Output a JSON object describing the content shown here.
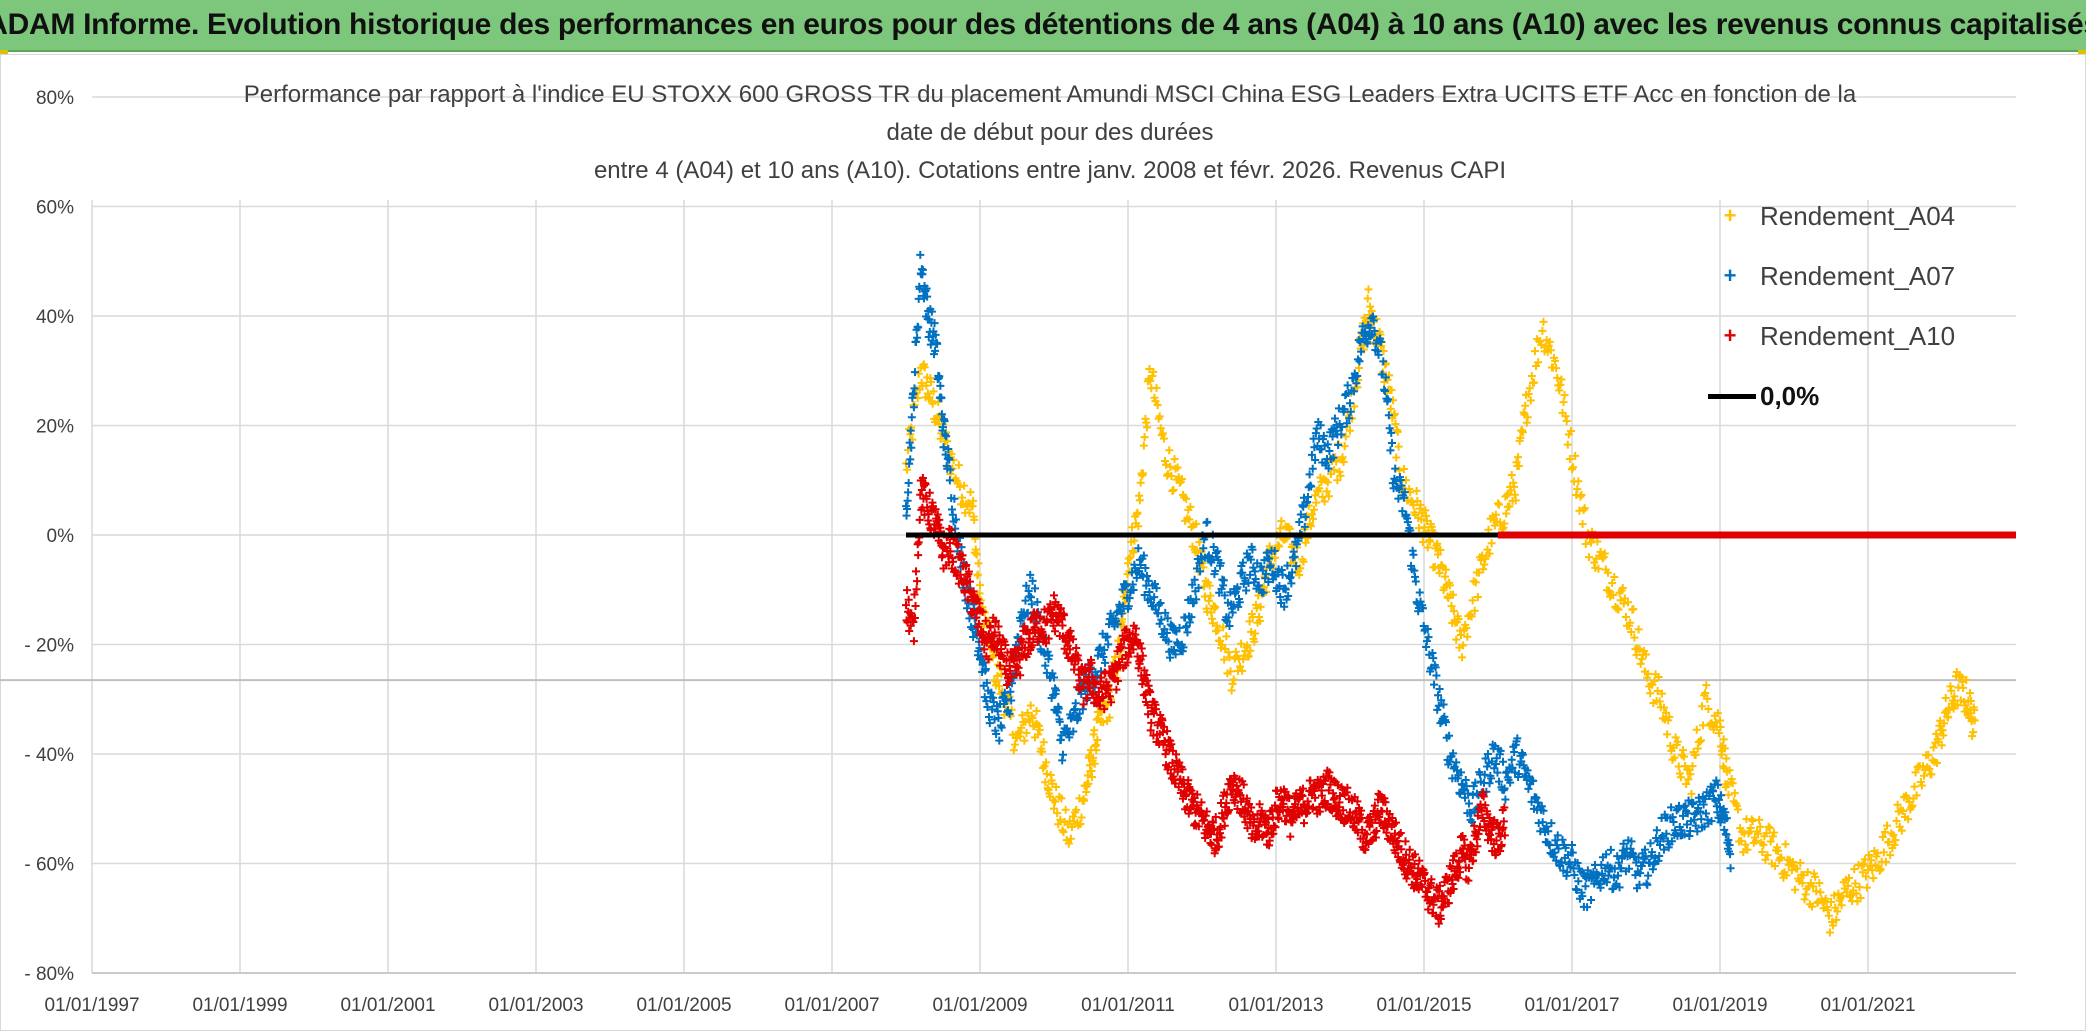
{
  "banner": {
    "title": "ADAM Informe. Evolution historique des performances en euros pour des détentions de 4 ans (A04) à 10 ans (A10) avec les revenus connus capitalisés"
  },
  "chart_data": {
    "type": "scatter",
    "title_lines": [
      "Performance par rapport à l'indice EU STOXX 600 GROSS TR  du placement Amundi MSCI China ESG Leaders Extra UCITS ETF Acc en fonction de la",
      "date de début pour des durées",
      "entre 4 (A04) et 10 ans (A10). Cotations entre janv. 2008 et févr. 2026. Revenus CAPI"
    ],
    "xlabel": "",
    "ylabel": "",
    "xlim": [
      1997.0,
      2023.0
    ],
    "ylim": [
      -80,
      80
    ],
    "x_ticks": [
      {
        "value": 1997,
        "label": "01/01/1997"
      },
      {
        "value": 1999,
        "label": "01/01/1999"
      },
      {
        "value": 2001,
        "label": "01/01/2001"
      },
      {
        "value": 2003,
        "label": "01/01/2003"
      },
      {
        "value": 2005,
        "label": "01/01/2005"
      },
      {
        "value": 2007,
        "label": "01/01/2007"
      },
      {
        "value": 2009,
        "label": "01/01/2009"
      },
      {
        "value": 2011,
        "label": "01/01/2011"
      },
      {
        "value": 2013,
        "label": "01/01/2013"
      },
      {
        "value": 2015,
        "label": "01/01/2015"
      },
      {
        "value": 2017,
        "label": "01/01/2017"
      },
      {
        "value": 2019,
        "label": "01/01/2019"
      },
      {
        "value": 2021,
        "label": "01/01/2021"
      }
    ],
    "y_ticks": [
      {
        "value": 80,
        "label": "80%"
      },
      {
        "value": 60,
        "label": "60%"
      },
      {
        "value": 40,
        "label": "40%"
      },
      {
        "value": 20,
        "label": "20%"
      },
      {
        "value": 0,
        "label": "0%"
      },
      {
        "value": -20,
        "label": "- 20%"
      },
      {
        "value": -40,
        "label": "- 40%"
      },
      {
        "value": -60,
        "label": "- 60%"
      },
      {
        "value": -80,
        "label": "- 80%"
      }
    ],
    "grid": true,
    "legend_position": "top-right",
    "series": [
      {
        "name": "Rendement_A04",
        "color": "#ffc000",
        "marker": "+",
        "x": [
          2008.0,
          2008.2,
          2008.35,
          2008.5,
          2008.7,
          2008.9,
          2009.0,
          2009.15,
          2009.3,
          2009.5,
          2009.7,
          2009.85,
          2010.0,
          2010.2,
          2010.4,
          2010.5,
          2010.6,
          2010.75,
          2010.9,
          2011.0,
          2011.15,
          2011.3,
          2011.5,
          2011.7,
          2011.9,
          2012.05,
          2012.2,
          2012.4,
          2012.6,
          2012.75,
          2012.9,
          2013.1,
          2013.3,
          2013.5,
          2013.7,
          2013.9,
          2014.1,
          2014.25,
          2014.4,
          2014.55,
          2014.7,
          2014.9,
          2015.05,
          2015.2,
          2015.35,
          2015.5,
          2015.7,
          2015.9,
          2016.1,
          2016.25,
          2016.4,
          2016.6,
          2016.8,
          2017.0,
          2017.2,
          2017.4,
          2017.6,
          2017.8,
          2018.0,
          2018.2,
          2018.4,
          2018.6,
          2018.8,
          2019.0,
          2019.1,
          2019.3,
          2019.5,
          2019.7,
          2019.9,
          2020.1,
          2020.3,
          2020.5,
          2020.7,
          2020.9,
          2021.1,
          2021.3,
          2021.5,
          2021.7,
          2021.9,
          2022.05,
          2022.2,
          2022.35,
          2022.45
        ],
        "y": [
          12,
          30,
          25,
          18,
          10,
          5,
          -12,
          -22,
          -28,
          -38,
          -32,
          -40,
          -48,
          -55,
          -48,
          -42,
          -35,
          -30,
          -20,
          -5,
          5,
          30,
          15,
          8,
          0,
          -10,
          -15,
          -25,
          -20,
          -15,
          -5,
          0,
          -5,
          5,
          10,
          15,
          30,
          42,
          35,
          25,
          10,
          5,
          0,
          -5,
          -12,
          -20,
          -10,
          0,
          5,
          10,
          25,
          38,
          30,
          15,
          0,
          -5,
          -10,
          -15,
          -25,
          -30,
          -40,
          -45,
          -30,
          -35,
          -45,
          -55,
          -55,
          -57,
          -60,
          -63,
          -65,
          -70,
          -65,
          -63,
          -60,
          -55,
          -50,
          -45,
          -40,
          -33,
          -28,
          -30,
          -36
        ]
      },
      {
        "name": "Rendement_A07",
        "color": "#0070c0",
        "marker": "+",
        "x": [
          2008.0,
          2008.1,
          2008.2,
          2008.3,
          2008.4,
          2008.5,
          2008.6,
          2008.75,
          2008.9,
          2009.0,
          2009.1,
          2009.25,
          2009.4,
          2009.55,
          2009.7,
          2009.85,
          2010.0,
          2010.1,
          2010.25,
          2010.4,
          2010.55,
          2010.7,
          2010.85,
          2011.0,
          2011.15,
          2011.3,
          2011.45,
          2011.6,
          2011.75,
          2011.9,
          2012.05,
          2012.2,
          2012.35,
          2012.5,
          2012.65,
          2012.8,
          2012.95,
          2013.1,
          2013.25,
          2013.4,
          2013.55,
          2013.7,
          2013.85,
          2014.0,
          2014.15,
          2014.3,
          2014.45,
          2014.6,
          2014.75,
          2014.9,
          2015.05,
          2015.2,
          2015.35,
          2015.5,
          2015.65,
          2015.8,
          2015.95,
          2016.1,
          2016.25,
          2016.4,
          2016.55,
          2016.7,
          2016.85,
          2017.0,
          2017.15,
          2017.3,
          2017.45,
          2017.6,
          2017.75,
          2017.9,
          2018.05,
          2018.2,
          2018.35,
          2018.5,
          2018.65,
          2018.8,
          2018.95,
          2019.05,
          2019.15
        ],
        "y": [
          5,
          25,
          50,
          40,
          35,
          20,
          10,
          -5,
          -15,
          -20,
          -30,
          -35,
          -30,
          -15,
          -10,
          -20,
          -28,
          -38,
          -35,
          -28,
          -25,
          -20,
          -15,
          -10,
          -5,
          -10,
          -15,
          -20,
          -18,
          -10,
          0,
          -5,
          -15,
          -10,
          -5,
          -8,
          -5,
          -10,
          -5,
          5,
          18,
          15,
          20,
          25,
          35,
          40,
          30,
          10,
          5,
          -10,
          -20,
          -30,
          -40,
          -45,
          -50,
          -45,
          -40,
          -45,
          -40,
          -45,
          -50,
          -55,
          -58,
          -60,
          -65,
          -64,
          -60,
          -62,
          -58,
          -62,
          -60,
          -55,
          -53,
          -52,
          -52,
          -50,
          -48,
          -52,
          -58
        ]
      },
      {
        "name": "Rendement_A10",
        "color": "#e00000",
        "marker": "+",
        "x": [
          2008.0,
          2008.1,
          2008.2,
          2008.3,
          2008.4,
          2008.5,
          2008.6,
          2008.7,
          2008.8,
          2008.9,
          2009.0,
          2009.1,
          2009.2,
          2009.3,
          2009.4,
          2009.5,
          2009.6,
          2009.7,
          2009.8,
          2009.9,
          2010.0,
          2010.1,
          2010.2,
          2010.3,
          2010.4,
          2010.5,
          2010.6,
          2010.7,
          2010.8,
          2010.9,
          2011.0,
          2011.1,
          2011.2,
          2011.3,
          2011.4,
          2011.5,
          2011.6,
          2011.7,
          2011.8,
          2011.9,
          2012.0,
          2012.1,
          2012.2,
          2012.3,
          2012.4,
          2012.5,
          2012.6,
          2012.7,
          2012.8,
          2012.9,
          2013.0,
          2013.1,
          2013.2,
          2013.3,
          2013.4,
          2013.5,
          2013.6,
          2013.7,
          2013.8,
          2013.9,
          2014.0,
          2014.1,
          2014.2,
          2014.3,
          2014.4,
          2014.5,
          2014.6,
          2014.7,
          2014.8,
          2014.9,
          2015.0,
          2015.1,
          2015.2,
          2015.3,
          2015.4,
          2015.5,
          2015.6,
          2015.7,
          2015.8,
          2015.9,
          2016.0,
          2016.1
        ],
        "y": [
          -12,
          -18,
          8,
          5,
          2,
          -3,
          -2,
          -5,
          -8,
          -12,
          -16,
          -20,
          -18,
          -22,
          -25,
          -24,
          -20,
          -18,
          -16,
          -17,
          -14,
          -16,
          -20,
          -24,
          -28,
          -26,
          -30,
          -28,
          -27,
          -22,
          -20,
          -18,
          -25,
          -32,
          -35,
          -38,
          -42,
          -45,
          -48,
          -50,
          -52,
          -54,
          -55,
          -50,
          -45,
          -47,
          -50,
          -55,
          -52,
          -54,
          -50,
          -48,
          -52,
          -50,
          -49,
          -47,
          -48,
          -46,
          -48,
          -49,
          -50,
          -52,
          -55,
          -54,
          -50,
          -52,
          -55,
          -58,
          -60,
          -62,
          -64,
          -66,
          -68,
          -65,
          -62,
          -58,
          -60,
          -55,
          -50,
          -54,
          -56,
          -52
        ]
      },
      {
        "name": "0,0%",
        "color": "#000000",
        "marker": "line",
        "x": [
          2008.0,
          2016.0
        ],
        "y": [
          0,
          0
        ]
      }
    ],
    "zero_fill_series": {
      "name": "Rendement_A10",
      "color": "#e00000",
      "x_range": [
        2016.0,
        2023.0
      ],
      "y": 0
    }
  }
}
